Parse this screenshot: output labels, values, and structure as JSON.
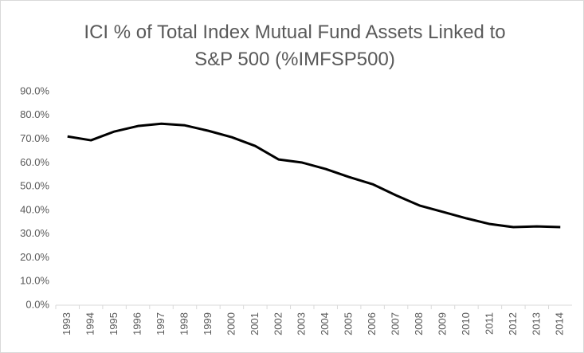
{
  "chart_data": {
    "type": "line",
    "title": [
      "ICI % of Total Index Mutual Fund Assets Linked to",
      "S&P 500 (%IMFSP500)"
    ],
    "categories": [
      "1993",
      "1994",
      "1995",
      "1996",
      "1997",
      "1998",
      "1999",
      "2000",
      "2001",
      "2002",
      "2003",
      "2004",
      "2005",
      "2006",
      "2007",
      "2008",
      "2009",
      "2010",
      "2011",
      "2012",
      "2013",
      "2014"
    ],
    "series": [
      {
        "color": "#000000",
        "values": [
          71.1,
          69.5,
          73.2,
          75.5,
          76.5,
          75.8,
          73.5,
          70.8,
          67.1,
          61.4,
          60.1,
          57.4,
          54.0,
          51.0,
          46.3,
          42.0,
          39.3,
          36.6,
          34.2,
          32.9,
          33.2,
          32.9
        ]
      }
    ],
    "ylim": [
      0,
      90
    ],
    "yticks": [
      {
        "value": 0,
        "label": "0.0%"
      },
      {
        "value": 10,
        "label": "10.0%"
      },
      {
        "value": 20,
        "label": "20.0%"
      },
      {
        "value": 30,
        "label": "30.0%"
      },
      {
        "value": 40,
        "label": "40.0%"
      },
      {
        "value": 50,
        "label": "50.0%"
      },
      {
        "value": 60,
        "label": "60.0%"
      },
      {
        "value": 70,
        "label": "70.0%"
      },
      {
        "value": 80,
        "label": "80.0%"
      },
      {
        "value": 90,
        "label": "90.0%"
      }
    ],
    "grid": false
  }
}
